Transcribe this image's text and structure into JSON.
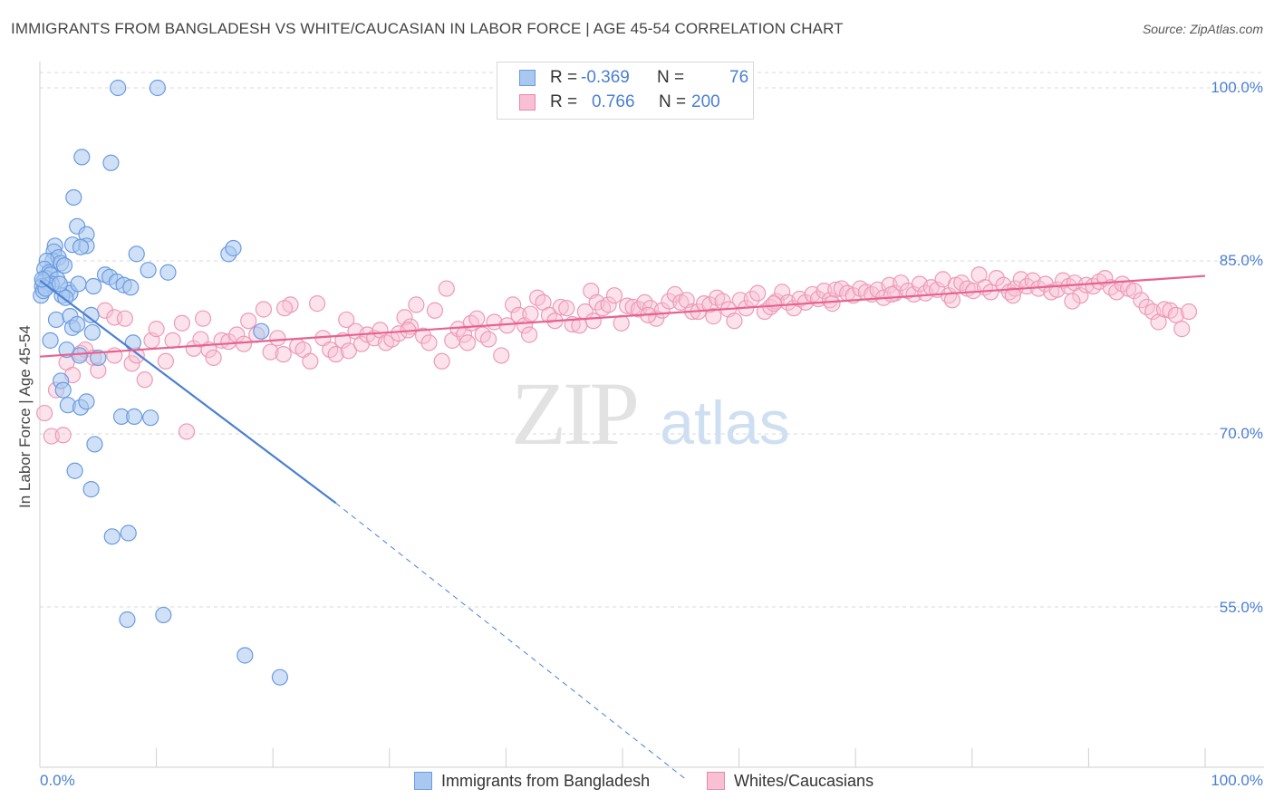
{
  "title": "IMMIGRANTS FROM BANGLADESH VS WHITE/CAUCASIAN IN LABOR FORCE | AGE 45-54 CORRELATION CHART",
  "source": "Source: ZipAtlas.com",
  "watermark": {
    "zip": "ZIP",
    "atlas": "atlas"
  },
  "legend": {
    "rows": [
      {
        "r_label": "R =",
        "r_value": "-0.369",
        "n_label": "N =",
        "n_value": "76",
        "color": "#a9c8f0",
        "border": "#6a9be0"
      },
      {
        "r_label": "R =",
        "r_value": "0.766",
        "n_label": "N =",
        "n_value": "200",
        "color": "#f8c0d2",
        "border": "#e68aa8"
      }
    ]
  },
  "colors": {
    "blue": "#4a7fd4",
    "blue_fill": "#a9c8f0",
    "pink": "#e8628f",
    "pink_fill": "#f8c0d2",
    "grid": "#d8d8d8",
    "accent_text": "#4a7fd4"
  },
  "chart_data": {
    "type": "scatter",
    "title": "IMMIGRANTS FROM BANGLADESH VS WHITE/CAUCASIAN IN LABOR FORCE | AGE 45-54 CORRELATION CHART",
    "xlabel": "",
    "ylabel": "In Labor Force | Age 45-54",
    "xlim": [
      0,
      100
    ],
    "ylim": [
      40,
      101.5
    ],
    "x_tick_labels": [
      "0.0%",
      "100.0%"
    ],
    "y_tick_labels": [
      "100.0%",
      "85.0%",
      "70.0%",
      "55.0%"
    ],
    "y_ticks": [
      100,
      85,
      70,
      55
    ],
    "grid": true,
    "legend_placement": "bottom",
    "series": [
      {
        "name": "Immigrants from Bangladesh",
        "color": "#4a7fd4",
        "r": -0.369,
        "n": 76,
        "trend": {
          "x_start": 0,
          "y_start": 83.3,
          "x_solid_end": 25.4,
          "y_solid_end": 64.0,
          "x_dash_end": 55.5,
          "y_dash_end": 40.0
        },
        "points": [
          [
            6.7,
            100.0
          ],
          [
            10.1,
            100.0
          ],
          [
            3.6,
            94.0
          ],
          [
            6.1,
            93.5
          ],
          [
            2.9,
            90.5
          ],
          [
            3.2,
            88.0
          ],
          [
            4.0,
            87.3
          ],
          [
            1.3,
            86.3
          ],
          [
            1.2,
            85.8
          ],
          [
            2.8,
            86.4
          ],
          [
            4.0,
            86.3
          ],
          [
            3.5,
            86.2
          ],
          [
            8.3,
            85.6
          ],
          [
            16.2,
            85.6
          ],
          [
            16.6,
            86.1
          ],
          [
            1.1,
            85.0
          ],
          [
            1.6,
            85.3
          ],
          [
            0.6,
            85.0
          ],
          [
            1.8,
            84.8
          ],
          [
            2.1,
            84.6
          ],
          [
            0.4,
            84.3
          ],
          [
            0.8,
            84.0
          ],
          [
            0.5,
            83.5
          ],
          [
            0.3,
            83.2
          ],
          [
            0.9,
            83.8
          ],
          [
            1.5,
            83.4
          ],
          [
            1.0,
            83.0
          ],
          [
            0.7,
            82.9
          ],
          [
            0.2,
            82.8
          ],
          [
            9.3,
            84.2
          ],
          [
            11.0,
            84.0
          ],
          [
            5.6,
            83.8
          ],
          [
            6.0,
            83.6
          ],
          [
            6.6,
            83.2
          ],
          [
            7.2,
            82.9
          ],
          [
            7.8,
            82.7
          ],
          [
            4.6,
            82.8
          ],
          [
            2.4,
            82.5
          ],
          [
            2.6,
            82.2
          ],
          [
            1.9,
            82.0
          ],
          [
            2.2,
            81.8
          ],
          [
            3.3,
            83.0
          ],
          [
            1.4,
            79.9
          ],
          [
            2.6,
            80.2
          ],
          [
            4.4,
            80.3
          ],
          [
            2.8,
            79.2
          ],
          [
            3.2,
            79.5
          ],
          [
            4.5,
            78.8
          ],
          [
            19.0,
            78.9
          ],
          [
            0.9,
            78.1
          ],
          [
            8.0,
            77.9
          ],
          [
            2.3,
            77.3
          ],
          [
            3.4,
            76.8
          ],
          [
            5.0,
            76.6
          ],
          [
            1.8,
            74.6
          ],
          [
            2.0,
            73.8
          ],
          [
            2.4,
            72.5
          ],
          [
            3.5,
            72.3
          ],
          [
            4.0,
            72.8
          ],
          [
            7.0,
            71.5
          ],
          [
            8.1,
            71.5
          ],
          [
            9.5,
            71.4
          ],
          [
            4.7,
            69.1
          ],
          [
            3.0,
            66.8
          ],
          [
            4.4,
            65.2
          ],
          [
            6.2,
            61.1
          ],
          [
            7.6,
            61.4
          ],
          [
            7.5,
            53.9
          ],
          [
            10.6,
            54.3
          ],
          [
            17.6,
            50.8
          ],
          [
            20.6,
            48.9
          ],
          [
            0.1,
            82.0
          ],
          [
            0.3,
            82.4
          ],
          [
            0.5,
            82.6
          ],
          [
            0.2,
            83.4
          ],
          [
            1.7,
            83.0
          ]
        ]
      },
      {
        "name": "Whites/Caucasians",
        "color": "#e8628f",
        "r": 0.766,
        "n": 200,
        "trend": {
          "x_start": 0,
          "y_start": 76.7,
          "x_end": 100,
          "y_end": 83.7
        },
        "points": [
          [
            0.4,
            71.8
          ],
          [
            1.0,
            69.8
          ],
          [
            2.0,
            69.9
          ],
          [
            1.4,
            73.8
          ],
          [
            2.3,
            76.2
          ],
          [
            2.8,
            75.1
          ],
          [
            3.5,
            77.0
          ],
          [
            3.9,
            77.3
          ],
          [
            4.6,
            76.6
          ],
          [
            5.0,
            75.5
          ],
          [
            5.6,
            80.7
          ],
          [
            6.4,
            80.1
          ],
          [
            6.4,
            76.8
          ],
          [
            7.3,
            80.0
          ],
          [
            7.9,
            76.1
          ],
          [
            8.3,
            76.8
          ],
          [
            9.0,
            74.7
          ],
          [
            9.6,
            78.1
          ],
          [
            10.0,
            79.1
          ],
          [
            10.8,
            76.3
          ],
          [
            11.4,
            78.1
          ],
          [
            12.2,
            79.6
          ],
          [
            12.6,
            70.2
          ],
          [
            13.2,
            77.4
          ],
          [
            13.8,
            78.2
          ],
          [
            14.5,
            77.3
          ],
          [
            14.9,
            76.6
          ],
          [
            15.6,
            78.1
          ],
          [
            16.2,
            78.0
          ],
          [
            16.9,
            78.6
          ],
          [
            17.5,
            77.8
          ],
          [
            17.9,
            79.8
          ],
          [
            18.6,
            78.6
          ],
          [
            19.2,
            80.8
          ],
          [
            19.8,
            77.1
          ],
          [
            20.4,
            78.3
          ],
          [
            20.9,
            76.9
          ],
          [
            21.5,
            81.2
          ],
          [
            22.1,
            77.6
          ],
          [
            22.6,
            77.3
          ],
          [
            23.2,
            76.3
          ],
          [
            23.8,
            81.3
          ],
          [
            24.3,
            78.3
          ],
          [
            24.9,
            77.3
          ],
          [
            25.4,
            76.9
          ],
          [
            26.0,
            78.1
          ],
          [
            26.5,
            77.2
          ],
          [
            27.1,
            78.9
          ],
          [
            27.6,
            77.8
          ],
          [
            28.1,
            78.6
          ],
          [
            28.7,
            78.3
          ],
          [
            29.2,
            79.0
          ],
          [
            29.7,
            77.9
          ],
          [
            30.2,
            78.2
          ],
          [
            30.8,
            78.7
          ],
          [
            31.3,
            80.1
          ],
          [
            31.8,
            79.3
          ],
          [
            32.3,
            81.2
          ],
          [
            32.9,
            78.5
          ],
          [
            33.4,
            77.9
          ],
          [
            33.9,
            80.7
          ],
          [
            34.5,
            76.3
          ],
          [
            34.9,
            82.6
          ],
          [
            35.4,
            78.1
          ],
          [
            35.9,
            79.1
          ],
          [
            36.4,
            78.6
          ],
          [
            37.0,
            79.6
          ],
          [
            37.5,
            80.0
          ],
          [
            38.0,
            78.6
          ],
          [
            38.5,
            78.2
          ],
          [
            39.0,
            79.7
          ],
          [
            39.6,
            76.8
          ],
          [
            40.1,
            79.4
          ],
          [
            40.6,
            81.2
          ],
          [
            41.1,
            80.3
          ],
          [
            41.6,
            79.4
          ],
          [
            42.1,
            80.4
          ],
          [
            42.7,
            81.8
          ],
          [
            43.2,
            81.4
          ],
          [
            43.7,
            80.3
          ],
          [
            44.2,
            79.8
          ],
          [
            44.7,
            81.0
          ],
          [
            45.2,
            80.9
          ],
          [
            45.7,
            79.5
          ],
          [
            46.3,
            79.4
          ],
          [
            46.8,
            80.6
          ],
          [
            47.3,
            82.4
          ],
          [
            47.8,
            81.4
          ],
          [
            48.3,
            80.9
          ],
          [
            48.8,
            81.2
          ],
          [
            49.3,
            82.0
          ],
          [
            49.9,
            79.6
          ],
          [
            50.4,
            81.1
          ],
          [
            50.9,
            81.0
          ],
          [
            51.4,
            80.8
          ],
          [
            51.9,
            81.4
          ],
          [
            52.4,
            80.9
          ],
          [
            52.9,
            80.0
          ],
          [
            53.4,
            80.7
          ],
          [
            54.0,
            81.5
          ],
          [
            54.5,
            82.1
          ],
          [
            55.0,
            81.4
          ],
          [
            55.5,
            81.6
          ],
          [
            56.0,
            80.6
          ],
          [
            56.5,
            80.6
          ],
          [
            57.0,
            81.3
          ],
          [
            57.5,
            81.2
          ],
          [
            58.1,
            81.8
          ],
          [
            58.6,
            81.5
          ],
          [
            59.1,
            80.8
          ],
          [
            59.6,
            79.8
          ],
          [
            60.1,
            81.6
          ],
          [
            60.6,
            80.9
          ],
          [
            61.1,
            81.7
          ],
          [
            61.6,
            82.2
          ],
          [
            62.2,
            80.6
          ],
          [
            62.7,
            81.0
          ],
          [
            63.2,
            81.5
          ],
          [
            63.7,
            82.3
          ],
          [
            64.2,
            81.4
          ],
          [
            64.7,
            80.9
          ],
          [
            65.2,
            81.7
          ],
          [
            65.7,
            81.4
          ],
          [
            66.3,
            82.1
          ],
          [
            66.8,
            81.7
          ],
          [
            67.3,
            82.4
          ],
          [
            67.8,
            81.6
          ],
          [
            68.3,
            82.5
          ],
          [
            68.8,
            82.6
          ],
          [
            69.3,
            82.2
          ],
          [
            69.8,
            82.0
          ],
          [
            70.4,
            82.6
          ],
          [
            70.9,
            82.3
          ],
          [
            71.4,
            82.1
          ],
          [
            71.9,
            82.5
          ],
          [
            72.4,
            81.8
          ],
          [
            72.9,
            82.9
          ],
          [
            73.4,
            82.2
          ],
          [
            73.9,
            83.1
          ],
          [
            74.5,
            82.4
          ],
          [
            75.0,
            82.1
          ],
          [
            75.5,
            83.0
          ],
          [
            76.0,
            82.2
          ],
          [
            76.5,
            82.7
          ],
          [
            77.0,
            82.5
          ],
          [
            77.5,
            83.4
          ],
          [
            78.0,
            82.0
          ],
          [
            78.6,
            82.9
          ],
          [
            79.1,
            83.1
          ],
          [
            79.6,
            82.6
          ],
          [
            80.1,
            82.4
          ],
          [
            80.6,
            83.8
          ],
          [
            81.1,
            82.7
          ],
          [
            81.6,
            82.3
          ],
          [
            82.1,
            83.5
          ],
          [
            82.7,
            82.9
          ],
          [
            83.2,
            82.3
          ],
          [
            83.7,
            82.6
          ],
          [
            84.2,
            83.4
          ],
          [
            84.7,
            82.8
          ],
          [
            85.2,
            83.3
          ],
          [
            85.7,
            82.6
          ],
          [
            86.3,
            83.0
          ],
          [
            86.8,
            82.3
          ],
          [
            87.3,
            82.5
          ],
          [
            87.8,
            83.3
          ],
          [
            88.3,
            82.8
          ],
          [
            88.8,
            83.1
          ],
          [
            89.3,
            82.0
          ],
          [
            89.8,
            82.9
          ],
          [
            90.4,
            82.8
          ],
          [
            90.9,
            83.2
          ],
          [
            91.4,
            83.5
          ],
          [
            91.9,
            82.7
          ],
          [
            92.4,
            82.3
          ],
          [
            92.9,
            83.0
          ],
          [
            93.4,
            82.6
          ],
          [
            93.9,
            82.4
          ],
          [
            94.5,
            81.6
          ],
          [
            95.0,
            81.0
          ],
          [
            95.5,
            80.6
          ],
          [
            96.0,
            79.7
          ],
          [
            96.5,
            80.8
          ],
          [
            97.0,
            80.7
          ],
          [
            97.5,
            80.3
          ],
          [
            98.0,
            79.1
          ],
          [
            98.6,
            80.6
          ],
          [
            14.0,
            80.0
          ],
          [
            21.0,
            80.9
          ],
          [
            26.3,
            79.9
          ],
          [
            31.6,
            79.0
          ],
          [
            36.7,
            77.9
          ],
          [
            42.0,
            78.6
          ],
          [
            47.5,
            79.8
          ],
          [
            52.2,
            80.3
          ],
          [
            57.8,
            80.2
          ],
          [
            63.0,
            81.3
          ],
          [
            68.0,
            81.3
          ],
          [
            73.1,
            82.1
          ],
          [
            78.3,
            81.6
          ],
          [
            83.5,
            82.0
          ],
          [
            88.6,
            81.5
          ]
        ]
      }
    ]
  },
  "axis": {
    "y_label": "In Labor Force | Age 45-54",
    "x_min_label": "0.0%",
    "x_max_label": "100.0%",
    "y_labels": [
      "100.0%",
      "85.0%",
      "70.0%",
      "55.0%"
    ]
  },
  "bottom_legend": [
    {
      "label": "Immigrants from Bangladesh",
      "color": "#a9c8f0",
      "border": "#6a9be0"
    },
    {
      "label": "Whites/Caucasians",
      "color": "#f8c0d2",
      "border": "#e68aa8"
    }
  ]
}
